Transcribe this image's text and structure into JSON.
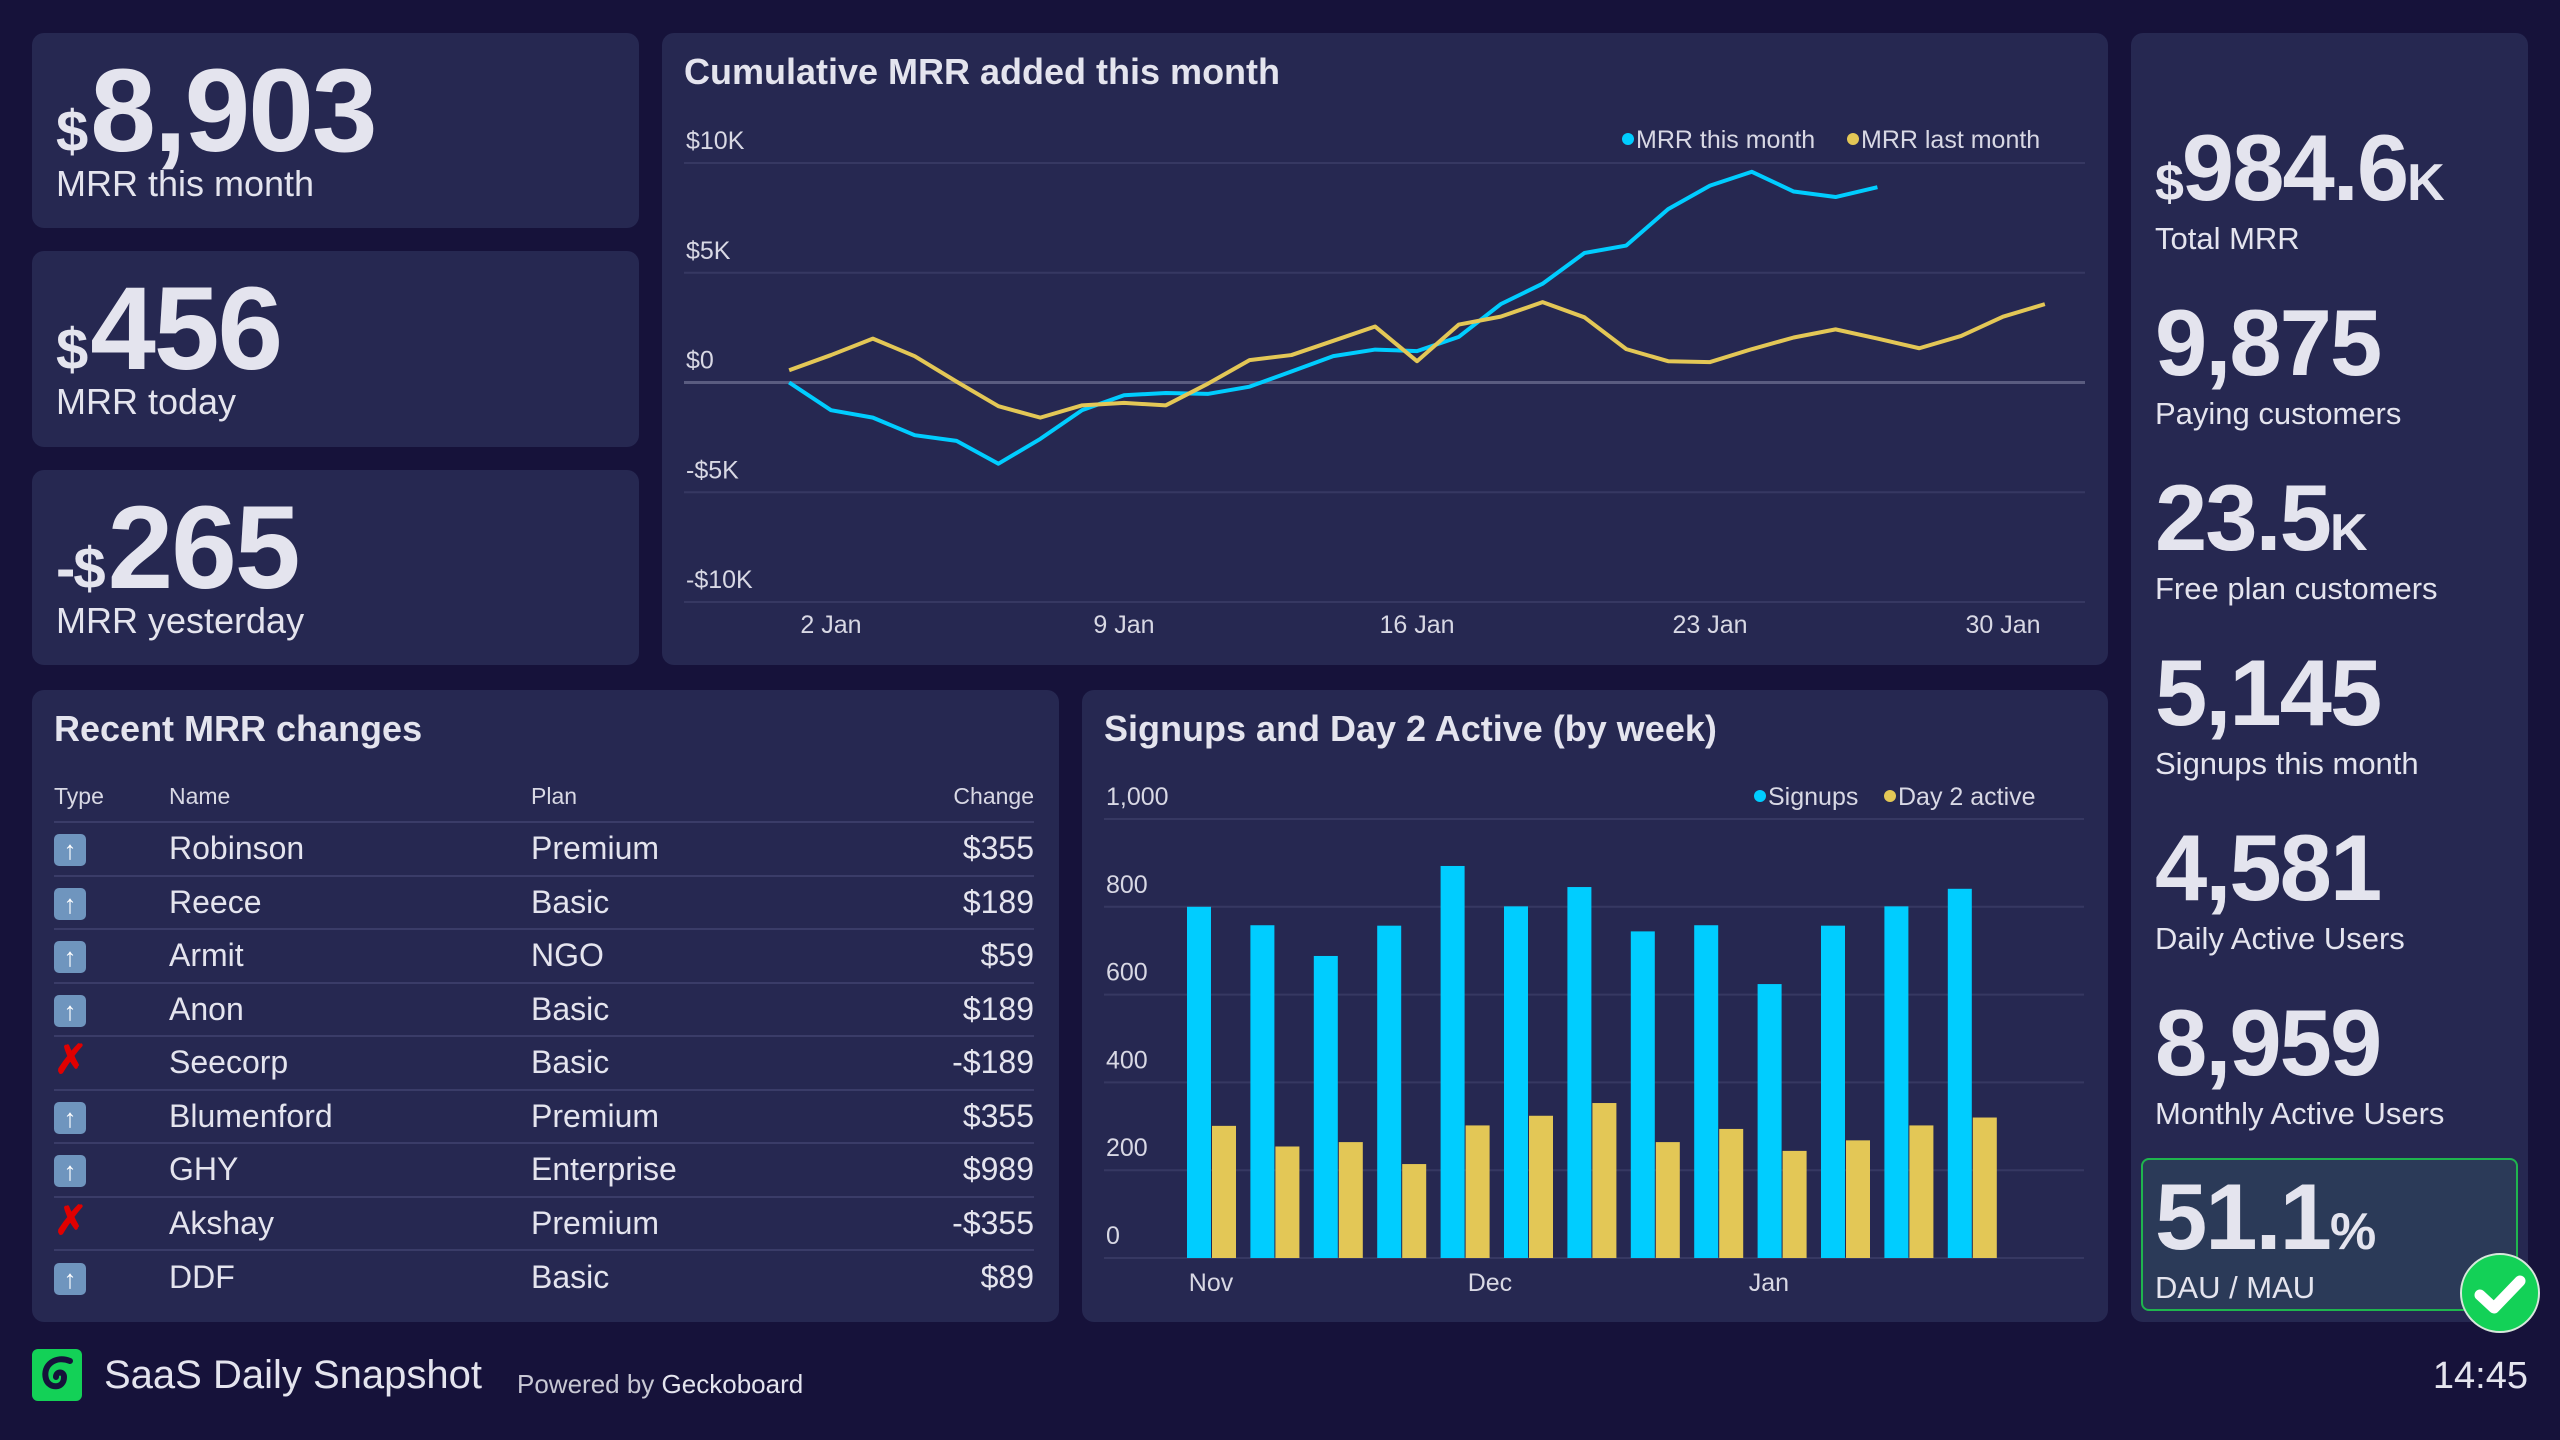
{
  "stats": [
    {
      "prefix": "$",
      "value": "8,903",
      "label": "MRR this month"
    },
    {
      "prefix": "$",
      "value": "456",
      "label": "MRR today"
    },
    {
      "prefix": "-$",
      "value": "265",
      "label": "MRR yesterday"
    }
  ],
  "line_chart": {
    "title": "Cumulative MRR added this month"
  },
  "table": {
    "title": "Recent MRR changes",
    "headers": [
      "Type",
      "Name",
      "Plan",
      "Change"
    ],
    "rows": [
      {
        "type": "upgrade",
        "name": "Robinson",
        "plan": "Premium",
        "change": "$355"
      },
      {
        "type": "upgrade",
        "name": "Reece",
        "plan": "Basic",
        "change": "$189"
      },
      {
        "type": "upgrade",
        "name": "Armit",
        "plan": "NGO",
        "change": "$59"
      },
      {
        "type": "upgrade",
        "name": "Anon",
        "plan": "Basic",
        "change": "$189"
      },
      {
        "type": "churn",
        "name": "Seecorp",
        "plan": "Basic",
        "change": "-$189"
      },
      {
        "type": "upgrade",
        "name": "Blumenford",
        "plan": "Premium",
        "change": "$355"
      },
      {
        "type": "upgrade",
        "name": "GHY",
        "plan": "Enterprise",
        "change": "$989"
      },
      {
        "type": "churn",
        "name": "Akshay",
        "plan": "Premium",
        "change": "-$355"
      },
      {
        "type": "upgrade",
        "name": "DDF",
        "plan": "Basic",
        "change": "$89"
      }
    ]
  },
  "bar_chart": {
    "title": "Signups and Day 2 Active (by week)"
  },
  "right": [
    {
      "prefix": "$",
      "value": "984.6",
      "suffix": "K",
      "label": "Total MRR"
    },
    {
      "prefix": "",
      "value": "9,875",
      "suffix": "",
      "label": "Paying customers"
    },
    {
      "prefix": "",
      "value": "23.5",
      "suffix": "K",
      "label": "Free plan customers"
    },
    {
      "prefix": "",
      "value": "5,145",
      "suffix": "",
      "label": "Signups this month"
    },
    {
      "prefix": "",
      "value": "4,581",
      "suffix": "",
      "label": "Daily Active Users"
    },
    {
      "prefix": "",
      "value": "8,959",
      "suffix": "",
      "label": "Monthly Active Users"
    }
  ],
  "goal": {
    "value": "51.1",
    "suffix": "%",
    "label": "DAU / MAU",
    "status": "check-icon",
    "status_color": "#13d157"
  },
  "footer": {
    "title": "SaaS Daily Snapshot",
    "powered": "Powered by",
    "brand": "Geckoboard",
    "time": "14:45"
  },
  "colors": {
    "blue": "#00cdff",
    "yellow": "#e3c756",
    "background": "#16123a",
    "card": "#262851"
  },
  "chart_data": [
    {
      "type": "line",
      "title": "Cumulative MRR added this month",
      "ylim": [
        -10000,
        10000
      ],
      "yticks": [
        "$10K",
        "$5K",
        "$0",
        "-$5K",
        "-$10K"
      ],
      "ytick_values": [
        10000,
        5000,
        0,
        -5000,
        -10000
      ],
      "xticks": [
        "2 Jan",
        "9 Jan",
        "16 Jan",
        "23 Jan",
        "30 Jan"
      ],
      "xtick_days": [
        2,
        9,
        16,
        23,
        30
      ],
      "xlim": [
        1,
        31
      ],
      "legend_position": "top-right",
      "grid": true,
      "series": [
        {
          "name": "MRR this month",
          "color": "#00cdff",
          "x": [
            1,
            2,
            3,
            4,
            5,
            6,
            7,
            8,
            9,
            10,
            11,
            12,
            13,
            14,
            15,
            16,
            17,
            18,
            19,
            20,
            21,
            22,
            23,
            24,
            25,
            26,
            27
          ],
          "values": [
            0,
            -1260,
            -1600,
            -2400,
            -2660,
            -3700,
            -2570,
            -1260,
            -580,
            -480,
            -520,
            -190,
            500,
            1200,
            1500,
            1430,
            2080,
            3570,
            4500,
            5900,
            6240,
            7900,
            8970,
            9600,
            8700,
            8450,
            8900
          ]
        },
        {
          "name": "MRR last month",
          "color": "#e3c756",
          "x": [
            1,
            2,
            3,
            4,
            5,
            6,
            7,
            8,
            9,
            10,
            11,
            12,
            13,
            14,
            15,
            16,
            17,
            18,
            19,
            20,
            21,
            22,
            23,
            24,
            25,
            26,
            27,
            28,
            29,
            30,
            31
          ],
          "values": [
            560,
            1250,
            2000,
            1200,
            40,
            -1080,
            -1600,
            -1040,
            -930,
            -1040,
            -60,
            1020,
            1250,
            1900,
            2550,
            970,
            2640,
            3000,
            3660,
            2970,
            1520,
            970,
            930,
            1520,
            2050,
            2420,
            2000,
            1560,
            2120,
            3000,
            3570
          ]
        }
      ]
    },
    {
      "type": "bar",
      "title": "Signups and Day 2 Active (by week)",
      "ylim": [
        0,
        1000
      ],
      "yticks": [
        "0",
        "200",
        "400",
        "600",
        "800",
        "1,000"
      ],
      "ytick_values": [
        0,
        200,
        400,
        600,
        800,
        1000
      ],
      "month_labels": [
        {
          "label": "Nov",
          "week": 0
        },
        {
          "label": "Dec",
          "week": 4.4
        },
        {
          "label": "Jan",
          "week": 8.8
        }
      ],
      "legend_position": "top-right",
      "grid": true,
      "series": [
        {
          "name": "Signups",
          "color": "#00cdff",
          "values": [
            800,
            758,
            688,
            757,
            893,
            801,
            845,
            744,
            758,
            624,
            757,
            801,
            841
          ]
        },
        {
          "name": "Day 2 active",
          "color": "#e3c756",
          "values": [
            301,
            254,
            264,
            214,
            302,
            324,
            353,
            264,
            294,
            244,
            268,
            302,
            320
          ]
        }
      ]
    }
  ]
}
